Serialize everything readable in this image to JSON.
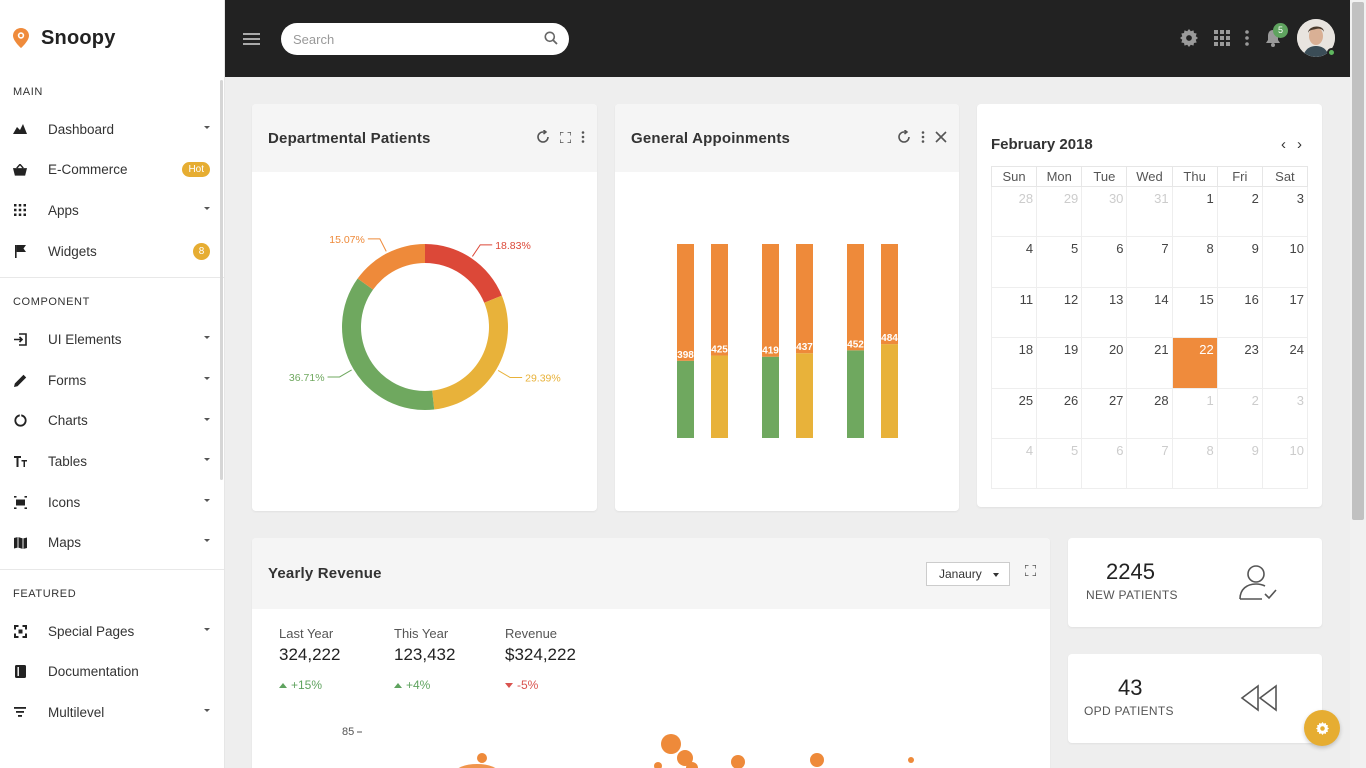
{
  "brand": {
    "name": "Snoopy"
  },
  "sidebar": {
    "sections": [
      {
        "title": "MAIN"
      },
      {
        "title": "COMPONENT"
      },
      {
        "title": "FEATURED"
      }
    ],
    "main_items": [
      {
        "label": "Dashboard",
        "icon": "dashboard-icon"
      },
      {
        "label": "E-Commerce",
        "icon": "basket-icon",
        "badge": "Hot"
      },
      {
        "label": "Apps",
        "icon": "apps-grid-icon"
      },
      {
        "label": "Widgets",
        "icon": "flag-icon",
        "badge": "8"
      }
    ],
    "component_items": [
      {
        "label": "UI Elements",
        "icon": "login-icon"
      },
      {
        "label": "Forms",
        "icon": "pencil-icon"
      },
      {
        "label": "Charts",
        "icon": "chart-pie-icon"
      },
      {
        "label": "Tables",
        "icon": "text-size-icon"
      },
      {
        "label": "Icons",
        "icon": "icons-icon"
      },
      {
        "label": "Maps",
        "icon": "map-icon"
      }
    ],
    "featured_items": [
      {
        "label": "Special Pages",
        "icon": "fullscreen-icon"
      },
      {
        "label": "Documentation",
        "icon": "book-icon"
      },
      {
        "label": "Multilevel",
        "icon": "filter-icon"
      }
    ]
  },
  "topbar": {
    "search_placeholder": "Search",
    "notification_count": "5"
  },
  "departmental": {
    "title": "Departmental Patients",
    "chart_data": {
      "type": "pie",
      "labels": [
        "18.83%",
        "29.39%",
        "36.71%",
        "15.07%"
      ],
      "values": [
        18.83,
        29.39,
        36.71,
        15.07
      ],
      "colors": [
        "#dc4838",
        "#e8b23a",
        "#6fa85f",
        "#ee8a3a"
      ]
    }
  },
  "appointments": {
    "title": "General Appoinments",
    "chart_data": {
      "type": "bar",
      "stacked": true,
      "ylim": [
        0,
        1000
      ],
      "labels": [
        "398",
        "425",
        "419",
        "437",
        "452",
        "484"
      ],
      "series": [
        {
          "values": [
            398,
            425,
            419,
            437,
            452,
            484
          ]
        },
        {
          "values": [
            602,
            575,
            581,
            563,
            548,
            516
          ]
        }
      ],
      "bottom_colors": [
        "#6fa85f",
        "#e8b23a",
        "#6fa85f",
        "#e8b23a",
        "#6fa85f",
        "#e8b23a"
      ],
      "top_color": "#ee8a3a"
    }
  },
  "calendar": {
    "title": "February 2018",
    "prev": "‹",
    "next": "›",
    "weekdays": [
      "Sun",
      "Mon",
      "Tue",
      "Wed",
      "Thu",
      "Fri",
      "Sat"
    ],
    "weeks": [
      [
        "28",
        "29",
        "30",
        "31",
        "1",
        "2",
        "3"
      ],
      [
        "4",
        "5",
        "6",
        "7",
        "8",
        "9",
        "10"
      ],
      [
        "11",
        "12",
        "13",
        "14",
        "15",
        "16",
        "17"
      ],
      [
        "18",
        "19",
        "20",
        "21",
        "22",
        "23",
        "24"
      ],
      [
        "25",
        "26",
        "27",
        "28",
        "1",
        "2",
        "3"
      ],
      [
        "4",
        "5",
        "6",
        "7",
        "8",
        "9",
        "10"
      ]
    ],
    "today": "22"
  },
  "revenue": {
    "title": "Yearly Revenue",
    "month_select": "Janaury",
    "stats": [
      {
        "label": "Last Year",
        "value": "324,222",
        "change": "+15%",
        "trend": "up"
      },
      {
        "label": "This Year",
        "value": "123,432",
        "change": "+4%",
        "trend": "up"
      },
      {
        "label": "Revenue",
        "value": "$324,222",
        "change": "-5%",
        "trend": "down"
      }
    ],
    "y_tick": "85"
  },
  "mini_cards": [
    {
      "value": "2245",
      "label": "NEW PATIENTS",
      "icon": "user-check-icon"
    },
    {
      "value": "43",
      "label": "OPD PATIENTS",
      "icon": "rewind-icon"
    }
  ],
  "colors": {
    "accent": "#ee8a3a",
    "gold": "#e6ad32",
    "topbar": "#222222"
  }
}
